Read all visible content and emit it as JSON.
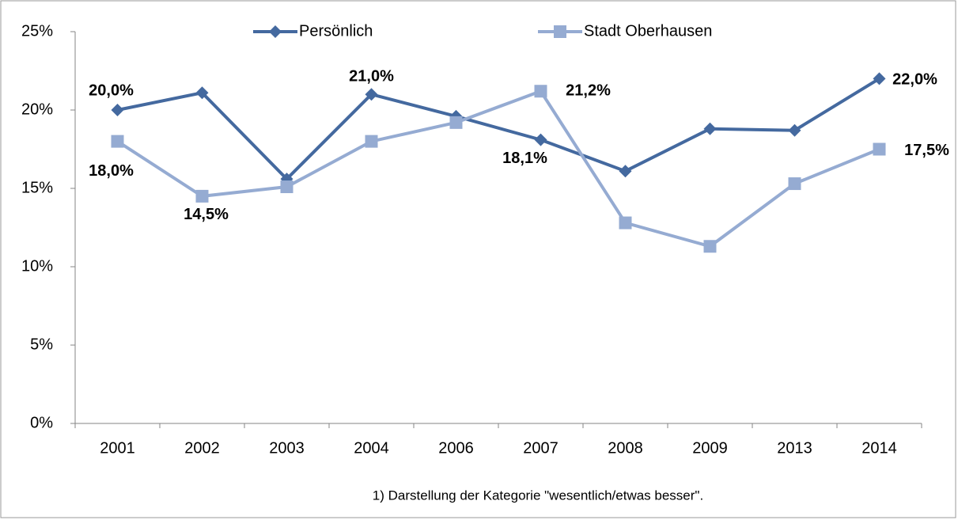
{
  "chart_data": {
    "type": "line",
    "categories": [
      "2001",
      "2002",
      "2003",
      "2004",
      "2006",
      "2007",
      "2008",
      "2009",
      "2013",
      "2014"
    ],
    "series": [
      {
        "name": "Persönlich",
        "color": "#44699f",
        "marker": "diamond",
        "values": [
          20.0,
          21.1,
          15.6,
          21.0,
          19.6,
          18.1,
          16.1,
          18.8,
          18.7,
          22.0
        ],
        "value_labels": [
          "20,0%",
          null,
          null,
          "21,0%",
          null,
          "18,1%",
          null,
          null,
          null,
          "22,0%"
        ]
      },
      {
        "name": "Stadt Oberhausen",
        "color": "#95abd2",
        "marker": "square",
        "values": [
          18.0,
          14.5,
          15.1,
          18.0,
          19.2,
          21.2,
          12.8,
          11.3,
          15.3,
          17.5
        ],
        "value_labels": [
          "18,0%",
          "14,5%",
          null,
          null,
          null,
          "21,2%",
          null,
          null,
          null,
          "17,5%"
        ]
      }
    ],
    "ylim": [
      0,
      25
    ],
    "yticks": [
      {
        "value": 0,
        "label": "0%"
      },
      {
        "value": 5,
        "label": "5%"
      },
      {
        "value": 10,
        "label": "10%"
      },
      {
        "value": 15,
        "label": "15%"
      },
      {
        "value": 20,
        "label": "20%"
      },
      {
        "value": 25,
        "label": "25%"
      }
    ],
    "grid": false,
    "legend": "top",
    "footnote": "1) Darstellung der Kategorie \"wesentlich/etwas besser\"."
  }
}
